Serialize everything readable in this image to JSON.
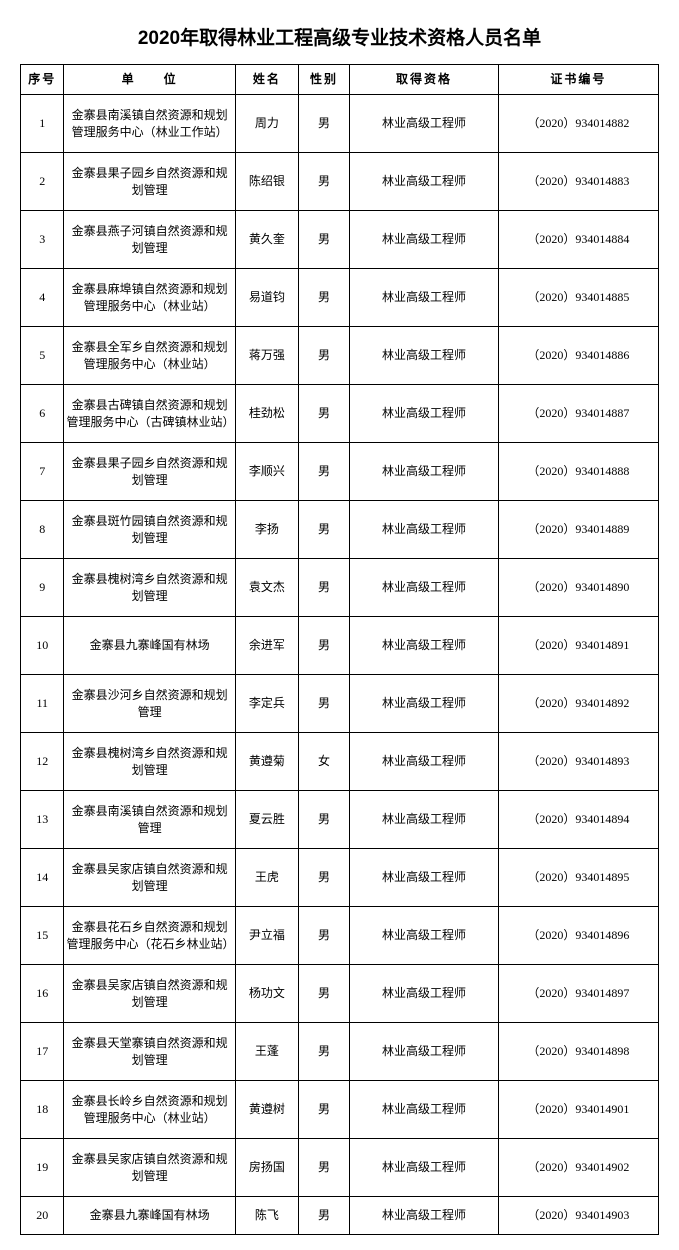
{
  "title": "2020年取得林业工程高级专业技术资格人员名单",
  "columns": {
    "seq": "序号",
    "unit": "单　　位",
    "name": "姓名",
    "sex": "性别",
    "qual": "取得资格",
    "cert": "证书编号"
  },
  "rows": [
    {
      "seq": "1",
      "unit": "金寨县南溪镇自然资源和规划管理服务中心（林业工作站）",
      "name": "周力",
      "sex": "男",
      "qual": "林业高级工程师",
      "cert": "（2020）934014882"
    },
    {
      "seq": "2",
      "unit": "金寨县果子园乡自然资源和规划管理",
      "name": "陈绍银",
      "sex": "男",
      "qual": "林业高级工程师",
      "cert": "（2020）934014883"
    },
    {
      "seq": "3",
      "unit": "金寨县燕子河镇自然资源和规划管理",
      "name": "黄久奎",
      "sex": "男",
      "qual": "林业高级工程师",
      "cert": "（2020）934014884"
    },
    {
      "seq": "4",
      "unit": "金寨县麻埠镇自然资源和规划管理服务中心（林业站）",
      "name": "易道钧",
      "sex": "男",
      "qual": "林业高级工程师",
      "cert": "（2020）934014885"
    },
    {
      "seq": "5",
      "unit": "金寨县全军乡自然资源和规划管理服务中心（林业站）",
      "name": "蒋万强",
      "sex": "男",
      "qual": "林业高级工程师",
      "cert": "（2020）934014886"
    },
    {
      "seq": "6",
      "unit": "金寨县古碑镇自然资源和规划管理服务中心（古碑镇林业站）",
      "name": "桂劲松",
      "sex": "男",
      "qual": "林业高级工程师",
      "cert": "（2020）934014887"
    },
    {
      "seq": "7",
      "unit": "金寨县果子园乡自然资源和规划管理",
      "name": "李顺兴",
      "sex": "男",
      "qual": "林业高级工程师",
      "cert": "（2020）934014888"
    },
    {
      "seq": "8",
      "unit": "金寨县斑竹园镇自然资源和规划管理",
      "name": "李扬",
      "sex": "男",
      "qual": "林业高级工程师",
      "cert": "（2020）934014889"
    },
    {
      "seq": "9",
      "unit": "金寨县槐树湾乡自然资源和规划管理",
      "name": "袁文杰",
      "sex": "男",
      "qual": "林业高级工程师",
      "cert": "（2020）934014890"
    },
    {
      "seq": "10",
      "unit": "金寨县九寨峰国有林场",
      "name": "余进军",
      "sex": "男",
      "qual": "林业高级工程师",
      "cert": "（2020）934014891"
    },
    {
      "seq": "11",
      "unit": "金寨县沙河乡自然资源和规划管理",
      "name": "李定兵",
      "sex": "男",
      "qual": "林业高级工程师",
      "cert": "（2020）934014892"
    },
    {
      "seq": "12",
      "unit": "金寨县槐树湾乡自然资源和规划管理",
      "name": "黄遵菊",
      "sex": "女",
      "qual": "林业高级工程师",
      "cert": "（2020）934014893"
    },
    {
      "seq": "13",
      "unit": "金寨县南溪镇自然资源和规划管理",
      "name": "夏云胜",
      "sex": "男",
      "qual": "林业高级工程师",
      "cert": "（2020）934014894"
    },
    {
      "seq": "14",
      "unit": "金寨县吴家店镇自然资源和规划管理",
      "name": "王虎",
      "sex": "男",
      "qual": "林业高级工程师",
      "cert": "（2020）934014895"
    },
    {
      "seq": "15",
      "unit": "金寨县花石乡自然资源和规划管理服务中心（花石乡林业站）",
      "name": "尹立福",
      "sex": "男",
      "qual": "林业高级工程师",
      "cert": "（2020）934014896"
    },
    {
      "seq": "16",
      "unit": "金寨县吴家店镇自然资源和规划管理",
      "name": "杨功文",
      "sex": "男",
      "qual": "林业高级工程师",
      "cert": "（2020）934014897"
    },
    {
      "seq": "17",
      "unit": "金寨县天堂寨镇自然资源和规划管理",
      "name": "王蓬",
      "sex": "男",
      "qual": "林业高级工程师",
      "cert": "（2020）934014898"
    },
    {
      "seq": "18",
      "unit": "金寨县长岭乡自然资源和规划管理服务中心（林业站）",
      "name": "黄遵树",
      "sex": "男",
      "qual": "林业高级工程师",
      "cert": "（2020）934014901"
    },
    {
      "seq": "19",
      "unit": "金寨县吴家店镇自然资源和规划管理",
      "name": "房扬国",
      "sex": "男",
      "qual": "林业高级工程师",
      "cert": "（2020）934014902"
    },
    {
      "seq": "20",
      "unit": "金寨县九寨峰国有林场",
      "name": "陈飞",
      "sex": "男",
      "qual": "林业高级工程师",
      "cert": "（2020）934014903"
    }
  ]
}
